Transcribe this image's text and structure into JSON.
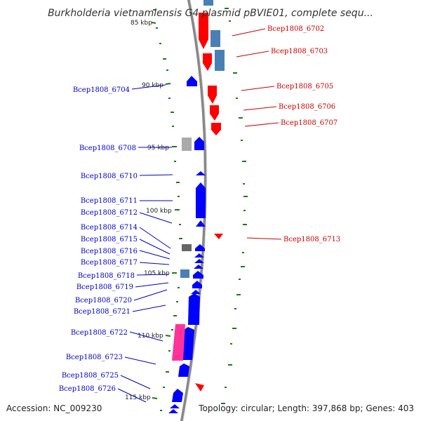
{
  "title": "Burkholderia vietnamiensis G4 plasmid pBVIE01, complete sequ...",
  "footer": {
    "accession": "Accession: NC_009230",
    "topology": "Topology: circular; Length: 397,868 bp; Genes: 403"
  },
  "colors": {
    "forward_gene": "#ff0000",
    "reverse_gene": "#0000ff",
    "forward_label": "#cc0000",
    "reverse_label": "#0000cc",
    "rna_feature": "#4a7fb5",
    "pseudo_feature": "#888888",
    "mobile_feature": "#ff3399",
    "gc_skew": "#1a7a1a",
    "backbone": "#888888"
  },
  "ticks": [
    "85 kbp",
    "90 kbp",
    "95 kbp",
    "100 kbp",
    "105 kbp",
    "110 kbp",
    "115 kbp"
  ],
  "genes_forward": [
    "Bcep1808_6702",
    "Bcep1808_6703",
    "Bcep1808_6705",
    "Bcep1808_6706",
    "Bcep1808_6707",
    "Bcep1808_6713"
  ],
  "genes_reverse": [
    "Bcep1808_6704",
    "Bcep1808_6708",
    "Bcep1808_6710",
    "Bcep1808_6711",
    "Bcep1808_6712",
    "Bcep1808_6714",
    "Bcep1808_6715",
    "Bcep1808_6716",
    "Bcep1808_6717",
    "Bcep1808_6718",
    "Bcep1808_6719",
    "Bcep1808_6720",
    "Bcep1808_6721",
    "Bcep1808_6722",
    "Bcep1808_6723",
    "Bcep1808_6725",
    "Bcep1808_6726"
  ]
}
